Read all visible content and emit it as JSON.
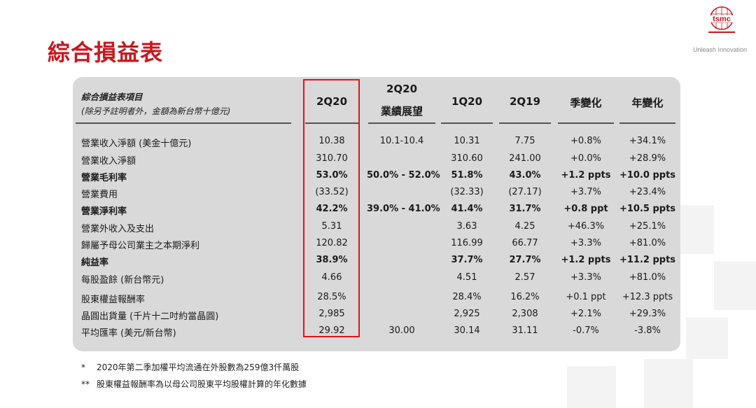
{
  "page": {
    "title": "綜合損益表"
  },
  "logo": {
    "text": "tsmc",
    "tagline": "Unleash Innovation"
  },
  "table": {
    "header_label_line1": "綜合損益表項目",
    "header_label_line2": "(除另予註明者外，金額為新台幣十億元)",
    "columns": [
      {
        "line1": "2Q20",
        "line2": ""
      },
      {
        "line1": "2Q20",
        "line2": "業績展望"
      },
      {
        "line1": "1Q20",
        "line2": ""
      },
      {
        "line1": "2Q19",
        "line2": ""
      },
      {
        "line1": "季變化",
        "line2": ""
      },
      {
        "line1": "年變化",
        "line2": ""
      }
    ],
    "rows": [
      {
        "label": "營業收入淨額 (美金十億元)",
        "bold": false,
        "cells": [
          "10.38",
          "10.1-10.4",
          "10.31",
          "7.75",
          "+0.8%",
          "+34.1%"
        ]
      },
      {
        "label": "營業收入淨額",
        "bold": false,
        "cells": [
          "310.70",
          "",
          "310.60",
          "241.00",
          "+0.0%",
          "+28.9%"
        ]
      },
      {
        "label": "營業毛利率",
        "bold": true,
        "cells": [
          "53.0%",
          "50.0% - 52.0%",
          "51.8%",
          "43.0%",
          "+1.2 ppts",
          "+10.0 ppts"
        ]
      },
      {
        "label": "營業費用",
        "bold": false,
        "cells": [
          "(33.52)",
          "",
          "(32.33)",
          "(27.17)",
          "+3.7%",
          "+23.4%"
        ]
      },
      {
        "label": "營業淨利率",
        "bold": true,
        "cells": [
          "42.2%",
          "39.0% - 41.0%",
          "41.4%",
          "31.7%",
          "+0.8 ppt",
          "+10.5 ppts"
        ]
      },
      {
        "label": "營業外收入及支出",
        "bold": false,
        "cells": [
          "5.31",
          "",
          "3.63",
          "4.25",
          "+46.3%",
          "+25.1%"
        ]
      },
      {
        "label": "歸屬予母公司業主之本期淨利",
        "bold": false,
        "cells": [
          "120.82",
          "",
          "116.99",
          "66.77",
          "+3.3%",
          "+81.0%"
        ]
      },
      {
        "label": "純益率",
        "bold": true,
        "cells": [
          "38.9%",
          "",
          "37.7%",
          "27.7%",
          "+1.2 ppts",
          "+11.2 ppts"
        ]
      },
      {
        "label": "每股盈餘 (新台幣元)",
        "bold": false,
        "cells": [
          "4.66",
          "",
          "4.51",
          "2.57",
          "+3.3%",
          "+81.0%"
        ]
      },
      {
        "label": "股東權益報酬率",
        "bold": false,
        "cells": [
          "28.5%",
          "",
          "28.4%",
          "16.2%",
          "+0.1 ppt",
          "+12.3 ppts"
        ]
      },
      {
        "label": "晶圓出貨量 (千片十二吋約當晶圓)",
        "bold": false,
        "cells": [
          "2,985",
          "",
          "2,925",
          "2,308",
          "+2.1%",
          "+29.3%"
        ]
      },
      {
        "label": "平均匯率 (美元/新台幣)",
        "bold": false,
        "cells": [
          "29.92",
          "30.00",
          "30.14",
          "31.11",
          "-0.7%",
          "-3.8%"
        ]
      }
    ]
  },
  "notes": [
    {
      "mark": "*",
      "text": "2020年第二季加權平均流通在外股數為259億3仟萬股"
    },
    {
      "mark": "**",
      "text": "股東權益報酬率為以母公司股東平均股權計算的年化數據"
    }
  ],
  "colors": {
    "title": "#c8171d",
    "highlight": "#e0141a",
    "panel": "#d9d9d9",
    "logo_red": "#c8171d"
  }
}
